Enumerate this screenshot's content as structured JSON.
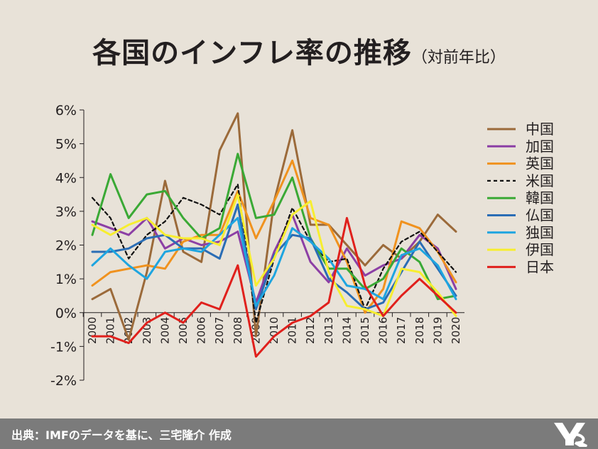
{
  "title": {
    "main": "各国のインフレ率の推移",
    "sub": "（対前年比）"
  },
  "footer": {
    "source": "出典：IMFのデータを基に、三宅隆介 作成"
  },
  "chart_data": {
    "type": "line",
    "x": [
      "2000",
      "2001",
      "2002",
      "2003",
      "2004",
      "2005",
      "2006",
      "2007",
      "2008",
      "2009",
      "2010",
      "2011",
      "2012",
      "2013",
      "2014",
      "2015",
      "2016",
      "2017",
      "2018",
      "2019",
      "2020"
    ],
    "y_ticks": [
      "6%",
      "5%",
      "4%",
      "3%",
      "2%",
      "1%",
      "0%",
      "-1%",
      "-2%"
    ],
    "y_tick_values": [
      6,
      5,
      4,
      3,
      2,
      1,
      0,
      -1,
      -2
    ],
    "ylim": [
      -2,
      6
    ],
    "grid": false,
    "legend_position": "right",
    "series": [
      {
        "name": "中国",
        "color": "#9b6a3a",
        "dash": false,
        "values": [
          0.4,
          0.7,
          -0.8,
          1.2,
          3.9,
          1.8,
          1.5,
          4.8,
          5.9,
          -0.7,
          3.3,
          5.4,
          2.6,
          2.6,
          2.0,
          1.4,
          2.0,
          1.6,
          2.1,
          2.9,
          2.4
        ]
      },
      {
        "name": "加国",
        "color": "#8c3fa5",
        "dash": false,
        "values": [
          2.7,
          2.5,
          2.3,
          2.8,
          1.9,
          2.2,
          2.0,
          2.1,
          2.4,
          0.3,
          1.8,
          2.9,
          1.5,
          0.9,
          1.9,
          1.1,
          1.4,
          1.6,
          2.3,
          1.9,
          0.7
        ]
      },
      {
        "name": "英国",
        "color": "#f0921e",
        "dash": false,
        "values": [
          0.8,
          1.2,
          1.3,
          1.4,
          1.3,
          2.1,
          2.3,
          2.3,
          3.6,
          2.2,
          3.3,
          4.5,
          2.8,
          2.6,
          1.5,
          0.0,
          0.7,
          2.7,
          2.5,
          1.8,
          0.9
        ]
      },
      {
        "name": "米国",
        "color": "#111111",
        "dash": true,
        "values": [
          3.4,
          2.8,
          1.6,
          2.3,
          2.7,
          3.4,
          3.2,
          2.9,
          3.8,
          -0.3,
          1.6,
          3.1,
          2.1,
          1.5,
          1.6,
          0.1,
          1.3,
          2.1,
          2.4,
          1.8,
          1.2
        ]
      },
      {
        "name": "韓国",
        "color": "#3aa935",
        "dash": false,
        "values": [
          2.3,
          4.1,
          2.8,
          3.5,
          3.6,
          2.8,
          2.2,
          2.5,
          4.7,
          2.8,
          2.9,
          4.0,
          2.2,
          1.3,
          1.3,
          0.7,
          1.0,
          1.9,
          1.5,
          0.4,
          0.5
        ]
      },
      {
        "name": "仏国",
        "color": "#2a6db5",
        "dash": false,
        "values": [
          1.8,
          1.8,
          1.9,
          2.2,
          2.3,
          1.9,
          1.9,
          1.6,
          3.2,
          0.1,
          1.7,
          2.3,
          2.2,
          1.0,
          0.6,
          0.1,
          0.3,
          1.2,
          2.1,
          1.3,
          0.5
        ]
      },
      {
        "name": "独国",
        "color": "#1ea5e0",
        "dash": false,
        "values": [
          1.4,
          1.9,
          1.4,
          1.0,
          1.8,
          1.9,
          1.8,
          2.3,
          2.8,
          0.2,
          1.1,
          2.5,
          2.1,
          1.6,
          0.8,
          0.7,
          0.4,
          1.7,
          1.9,
          1.4,
          0.4
        ]
      },
      {
        "name": "伊国",
        "color": "#f7ee2f",
        "dash": false,
        "values": [
          2.6,
          2.3,
          2.6,
          2.8,
          2.3,
          2.2,
          2.2,
          2.0,
          3.5,
          0.8,
          1.6,
          2.9,
          3.3,
          1.2,
          0.2,
          0.1,
          -0.1,
          1.3,
          1.2,
          0.6,
          -0.1
        ]
      },
      {
        "name": "日本",
        "color": "#e0201c",
        "dash": false,
        "values": [
          -0.7,
          -0.7,
          -0.9,
          -0.3,
          0.0,
          -0.3,
          0.3,
          0.1,
          1.4,
          -1.3,
          -0.7,
          -0.3,
          -0.1,
          0.3,
          2.8,
          0.8,
          -0.1,
          0.5,
          1.0,
          0.5,
          0.0
        ]
      }
    ]
  }
}
